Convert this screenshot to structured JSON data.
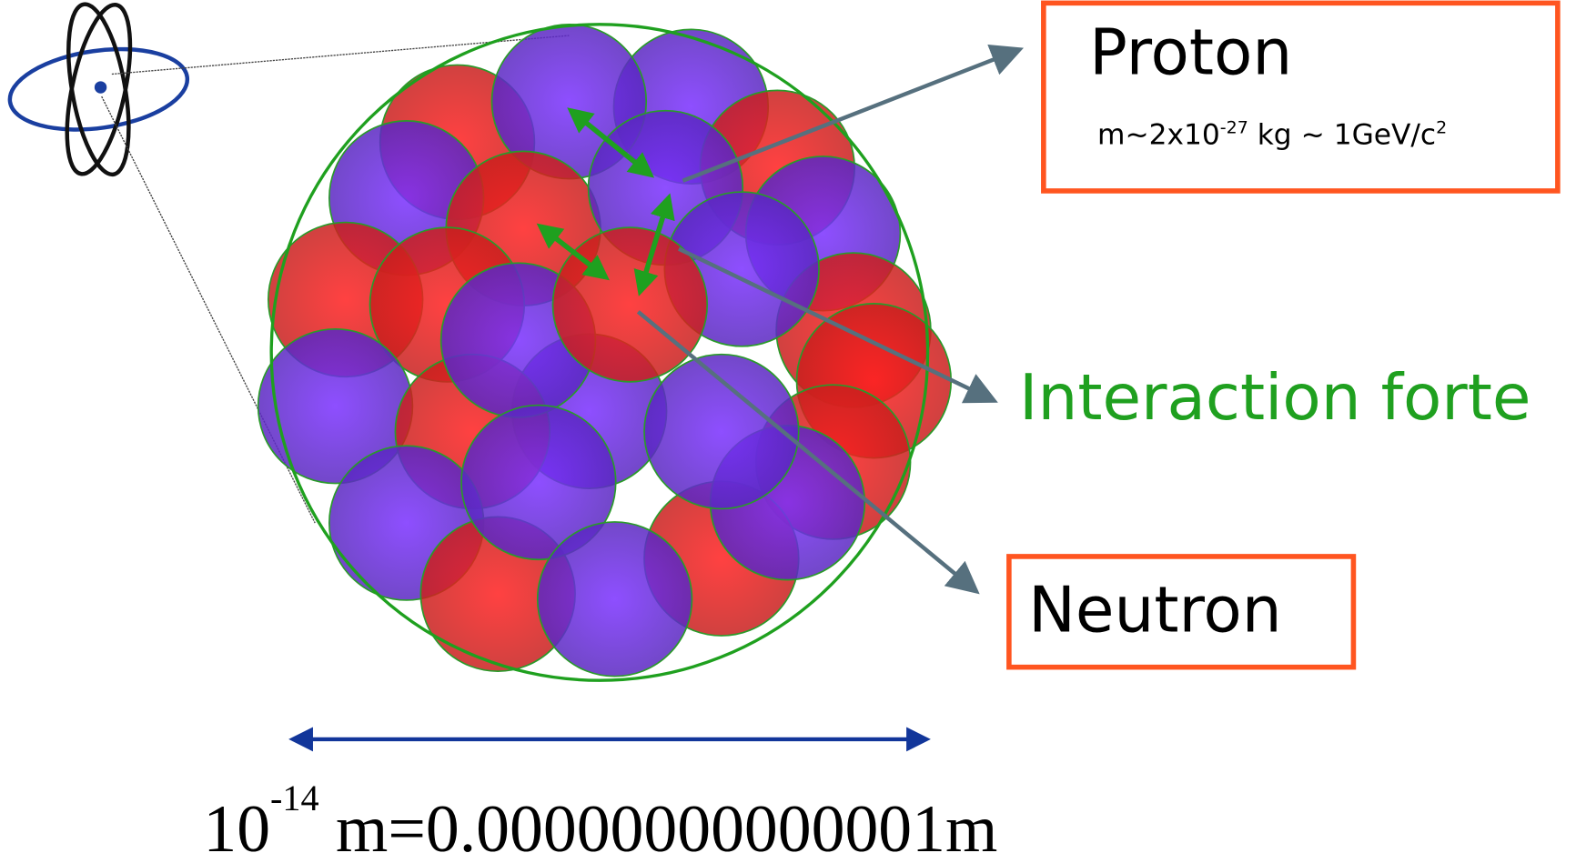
{
  "proton": {
    "name": "Proton",
    "mass_prefix": "m~2x10",
    "mass_exponent": "-27",
    "mass_suffix": " kg ~ 1GeV/c",
    "mass_unit_exponent": "2"
  },
  "interaction": "Interaction forte",
  "neutron": {
    "name": "Neutron"
  },
  "scale": {
    "base": "10",
    "exponent": "-14",
    "rest": " m=0.00000000000001m"
  }
}
